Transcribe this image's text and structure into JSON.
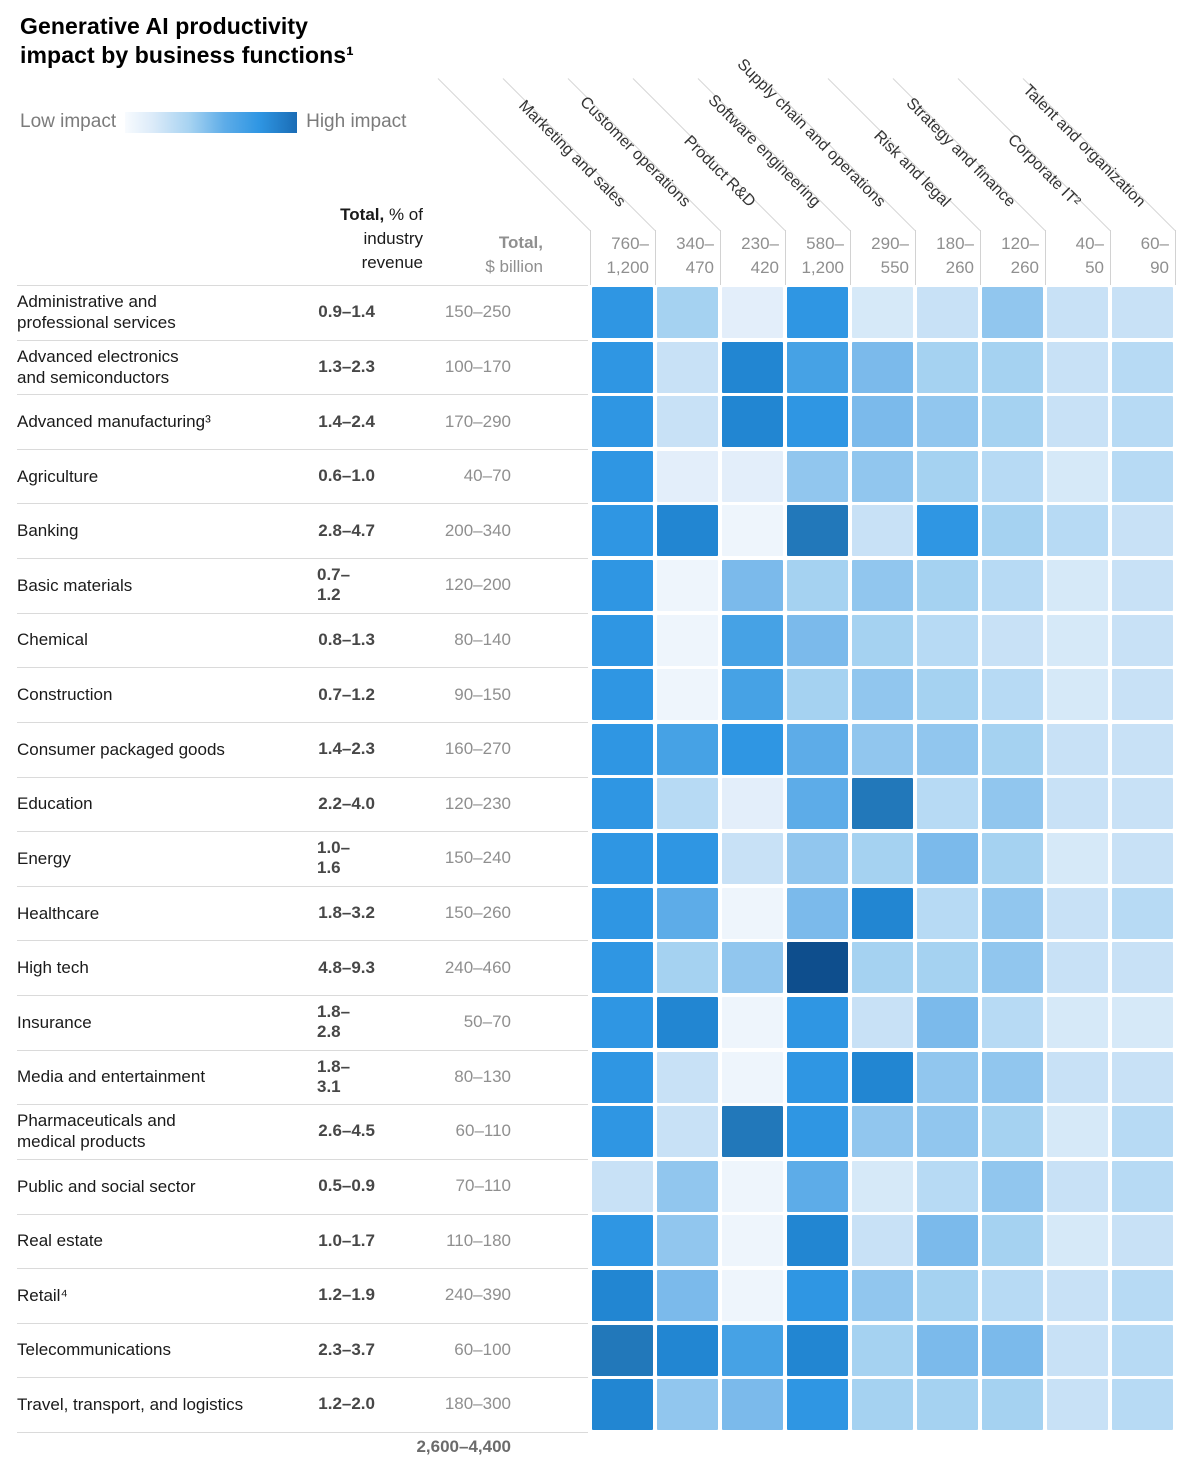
{
  "chart_data": {
    "type": "heatmap",
    "title_line1": "Generative AI productivity",
    "title_line2": "impact by business functions¹",
    "legend_low": "Low impact",
    "legend_high": "High impact",
    "legend_position": "top-left",
    "impact_scale_note": "impact values are color intensity levels read from the chart, 0 = lowest impact, 13 = highest impact",
    "palette": [
      "#eef5fc",
      "#e3eefa",
      "#d6e9f8",
      "#c8e1f6",
      "#b7daf4",
      "#a5d2f1",
      "#91c6ee",
      "#7bbaeb",
      "#5dace8",
      "#46a2e5",
      "#2f96e3",
      "#2286d2",
      "#2278ba",
      "#0e4e8d"
    ],
    "pct_header": {
      "bold": "Total,",
      "rest": " % of",
      "line2": "industry",
      "line3": "revenue"
    },
    "usd_header": {
      "bold": "Total,",
      "line2": "$ billion"
    },
    "columns": [
      {
        "label": "Marketing and sales",
        "total_line1": "760–",
        "total_line2": "1,200"
      },
      {
        "label": "Customer operations",
        "total_line1": "340–",
        "total_line2": "470"
      },
      {
        "label": "Product R&D",
        "total_line1": "230–",
        "total_line2": "420"
      },
      {
        "label": "Software engineering",
        "total_line1": "580–",
        "total_line2": "1,200"
      },
      {
        "label": "Supply chain and operations",
        "total_line1": "290–",
        "total_line2": "550"
      },
      {
        "label": "Risk and legal",
        "total_line1": "180–",
        "total_line2": "260"
      },
      {
        "label": "Strategy and finance",
        "total_line1": "120–",
        "total_line2": "260"
      },
      {
        "label": "Corporate IT²",
        "total_line1": "40–",
        "total_line2": "50"
      },
      {
        "label": "Talent and organization",
        "total_line1": "60–",
        "total_line2": "90"
      }
    ],
    "rows": [
      {
        "label": "Administrative and\nprofessional services",
        "pct": "0.9–1.4",
        "usd": "150–250",
        "impact": [
          10,
          5,
          1,
          10,
          2,
          3,
          6,
          3,
          3
        ]
      },
      {
        "label": "Advanced electronics\nand semiconductors",
        "pct": "1.3–2.3",
        "usd": "100–170",
        "impact": [
          10,
          3,
          11,
          9,
          7,
          5,
          5,
          3,
          4
        ]
      },
      {
        "label": "Advanced manufacturing³",
        "pct": "1.4–2.4",
        "usd": "170–290",
        "impact": [
          10,
          3,
          11,
          10,
          7,
          6,
          5,
          3,
          4
        ]
      },
      {
        "label": "Agriculture",
        "pct": "0.6–1.0",
        "usd": "40–70",
        "impact": [
          10,
          1,
          1,
          6,
          6,
          5,
          4,
          2,
          4
        ]
      },
      {
        "label": "Banking",
        "pct": "2.8–4.7",
        "usd": "200–340",
        "impact": [
          10,
          11,
          0,
          12,
          3,
          10,
          5,
          4,
          3
        ]
      },
      {
        "label": "Basic materials",
        "pct": "0.7– 1.2",
        "usd": "120–200",
        "impact": [
          10,
          0,
          7,
          5,
          6,
          5,
          4,
          2,
          3
        ]
      },
      {
        "label": "Chemical",
        "pct": "0.8–1.3",
        "usd": "80–140",
        "impact": [
          10,
          0,
          9,
          7,
          5,
          4,
          3,
          2,
          3
        ]
      },
      {
        "label": "Construction",
        "pct": "0.7–1.2",
        "usd": "90–150",
        "impact": [
          10,
          0,
          9,
          5,
          6,
          5,
          4,
          2,
          3
        ]
      },
      {
        "label": "Consumer packaged goods",
        "pct": "1.4–2.3",
        "usd": "160–270",
        "impact": [
          10,
          9,
          10,
          8,
          6,
          6,
          5,
          3,
          3
        ]
      },
      {
        "label": "Education",
        "pct": "2.2–4.0",
        "usd": "120–230",
        "impact": [
          10,
          4,
          1,
          8,
          12,
          4,
          6,
          3,
          3
        ]
      },
      {
        "label": "Energy",
        "pct": "1.0– 1.6",
        "usd": "150–240",
        "impact": [
          10,
          10,
          3,
          6,
          5,
          7,
          5,
          2,
          3
        ]
      },
      {
        "label": "Healthcare",
        "pct": "1.8–3.2",
        "usd": "150–260",
        "impact": [
          10,
          8,
          0,
          7,
          11,
          4,
          6,
          3,
          4
        ]
      },
      {
        "label": "High tech",
        "pct": "4.8–9.3",
        "usd": "240–460",
        "impact": [
          10,
          5,
          6,
          13,
          5,
          5,
          6,
          3,
          3
        ]
      },
      {
        "label": "Insurance",
        "pct": "1.8– 2.8",
        "usd": "50–70",
        "impact": [
          10,
          11,
          0,
          10,
          3,
          7,
          4,
          2,
          2
        ]
      },
      {
        "label": "Media and entertainment",
        "pct": "1.8– 3.1",
        "usd": "80–130",
        "impact": [
          10,
          3,
          0,
          10,
          11,
          6,
          6,
          3,
          3
        ]
      },
      {
        "label": "Pharmaceuticals and\nmedical products",
        "pct": "2.6–4.5",
        "usd": "60–110",
        "impact": [
          10,
          3,
          12,
          10,
          6,
          6,
          5,
          2,
          4
        ]
      },
      {
        "label": "Public and social sector",
        "pct": "0.5–0.9",
        "usd": "70–110",
        "impact": [
          3,
          6,
          0,
          8,
          2,
          4,
          6,
          3,
          4
        ]
      },
      {
        "label": "Real estate",
        "pct": "1.0–1.7",
        "usd": "110–180",
        "impact": [
          10,
          6,
          0,
          11,
          3,
          7,
          5,
          2,
          3
        ]
      },
      {
        "label": "Retail⁴",
        "pct": "1.2–1.9",
        "usd": "240–390",
        "impact": [
          11,
          7,
          0,
          10,
          6,
          5,
          4,
          3,
          4
        ]
      },
      {
        "label": "Telecommunications",
        "pct": "2.3–3.7",
        "usd": "60–100",
        "impact": [
          12,
          11,
          9,
          11,
          5,
          7,
          7,
          3,
          4
        ]
      },
      {
        "label": "Travel, transport, and logistics",
        "pct": "1.2–2.0",
        "usd": "180–300",
        "impact": [
          11,
          6,
          7,
          10,
          5,
          5,
          5,
          3,
          4
        ]
      }
    ],
    "grand_total": "2,600–4,400"
  }
}
